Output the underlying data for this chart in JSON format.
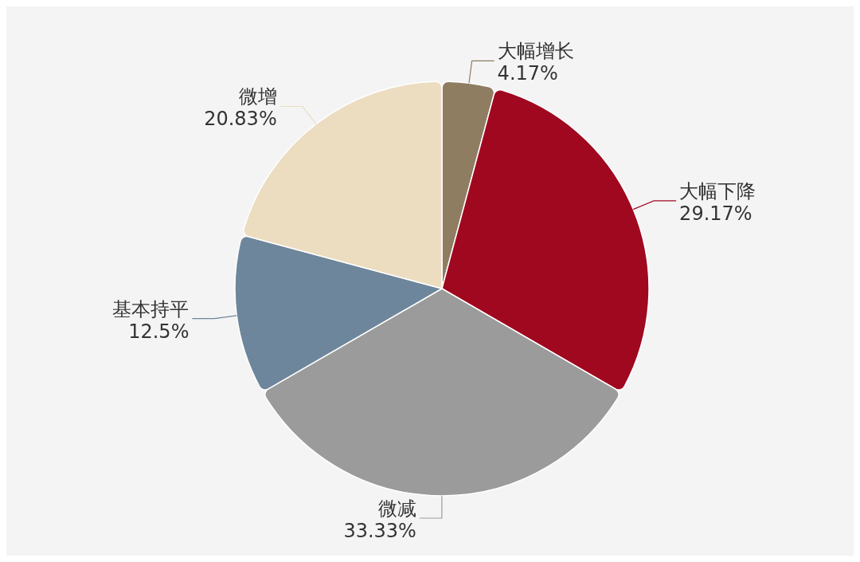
{
  "chart_data": {
    "type": "pie",
    "categories": [
      "大幅增长",
      "大幅下降",
      "微减",
      "基本持平",
      "微增"
    ],
    "values": [
      4.17,
      29.17,
      33.33,
      12.5,
      20.83
    ],
    "value_labels": [
      "4.17%",
      "29.17%",
      "33.33%",
      "12.5%",
      "20.83%"
    ],
    "colors": [
      "#8f7d62",
      "#a00820",
      "#9b9b9b",
      "#6e869b",
      "#ecdcc0"
    ],
    "legend": false
  }
}
